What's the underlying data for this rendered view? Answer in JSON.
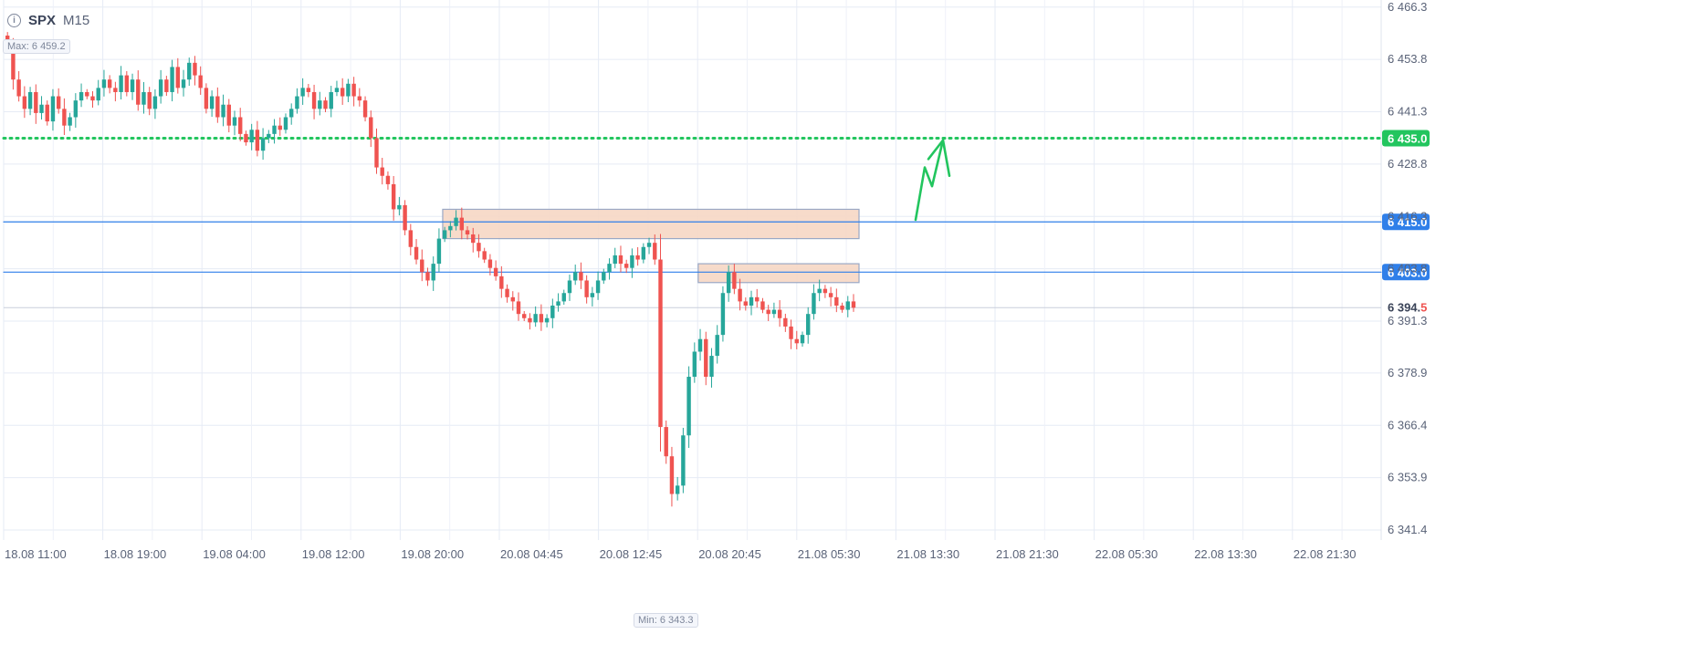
{
  "header": {
    "symbol": "SPX",
    "timeframe": "M15",
    "info_icon": "info-icon"
  },
  "max_label": "Max: 6 459.2",
  "min_label": "Min: 6 343.3",
  "colors": {
    "up": "#26a69a",
    "down": "#ef5350",
    "resistance": "#2f7fe9",
    "target": "#22c55e",
    "zone_fill": "#f6d7c4",
    "zone_stroke": "#9aa8c5",
    "grid": "#e6ebf5"
  },
  "chart_data": {
    "type": "candlestick",
    "instrument": "SPX",
    "timeframe": "M15",
    "y_ticks": [
      "6 466.3",
      "6 453.8",
      "6 441.3",
      "6 428.8",
      "6 416.3",
      "6 403.8",
      "6 391.3",
      "6 378.9",
      "6 366.4",
      "6 353.9",
      "6 341.4"
    ],
    "x_ticks": [
      "18.08 11:00",
      "18.08 19:00",
      "19.08 04:00",
      "19.08 12:00",
      "19.08 20:00",
      "20.08 04:45",
      "20.08 12:45",
      "20.08 20:45",
      "21.08 05:30",
      "21.08 13:30",
      "21.08 21:30",
      "22.08 05:30",
      "22.08 13:30",
      "22.08 21:30"
    ],
    "ylim": [
      6339.0,
      6468.0
    ],
    "max": 6459.2,
    "min": 6343.3,
    "current_price": {
      "int": "6 394.",
      "dec": "5",
      "value": 6394.5
    },
    "horizontal_levels": [
      {
        "price": 6435.0,
        "label": "6 435.0",
        "style": "dotted",
        "color": "#22c55e"
      },
      {
        "price": 6415.0,
        "label": "6 415.0",
        "style": "solid",
        "color": "#2f7fe9"
      },
      {
        "price": 6403.0,
        "label": "6 403.0",
        "style": "solid",
        "color": "#2f7fe9"
      }
    ],
    "zones": [
      {
        "bar_start": 77,
        "bar_end": 150,
        "price_top": 6418.0,
        "price_bottom": 6411.0
      },
      {
        "bar_start": 122,
        "bar_end": 150,
        "price_top": 6405.0,
        "price_bottom": 6400.5
      }
    ],
    "closes": [
      6457,
      6449,
      6445,
      6442,
      6446,
      6441,
      6443,
      6439,
      6445,
      6442,
      6438,
      6440,
      6444,
      6446,
      6445,
      6444,
      6447,
      6449,
      6447,
      6446,
      6450,
      6446,
      6449,
      6443,
      6446,
      6442,
      6445,
      6449,
      6446,
      6452,
      6447,
      6449,
      6453,
      6450,
      6447,
      6442,
      6445,
      6440,
      6443,
      6438,
      6440,
      6436,
      6434,
      6437,
      6432,
      6435,
      6436,
      6438,
      6437,
      6440,
      6442,
      6445,
      6447,
      6446,
      6442,
      6444,
      6442,
      6446,
      6447,
      6445,
      6448,
      6445,
      6444,
      6440,
      6435,
      6428,
      6426,
      6424,
      6418,
      6419,
      6413,
      6409,
      6406,
      6403,
      6401,
      6405,
      6411,
      6413,
      6414,
      6416,
      6413,
      6412,
      6410,
      6408,
      6406,
      6404,
      6402,
      6399,
      6397,
      6396,
      6393,
      6392,
      6391,
      6393,
      6391,
      6392,
      6395,
      6396,
      6398,
      6401,
      6403,
      6401,
      6397,
      6398,
      6401,
      6403,
      6405,
      6407,
      6405,
      6404,
      6407,
      6406,
      6409,
      6410,
      6406,
      6366,
      6359,
      6350,
      6352,
      6364,
      6378,
      6384,
      6387,
      6378,
      6383,
      6388,
      6398,
      6403,
      6399,
      6396,
      6395,
      6397,
      6396,
      6394,
      6393,
      6394,
      6392,
      6390,
      6387,
      6386,
      6388,
      6393,
      6398,
      6399,
      6398,
      6397,
      6395,
      6394,
      6396,
      6394.5
    ],
    "annotation": "green arrow projecting move from 6 415.0 toward 6 435.0"
  }
}
